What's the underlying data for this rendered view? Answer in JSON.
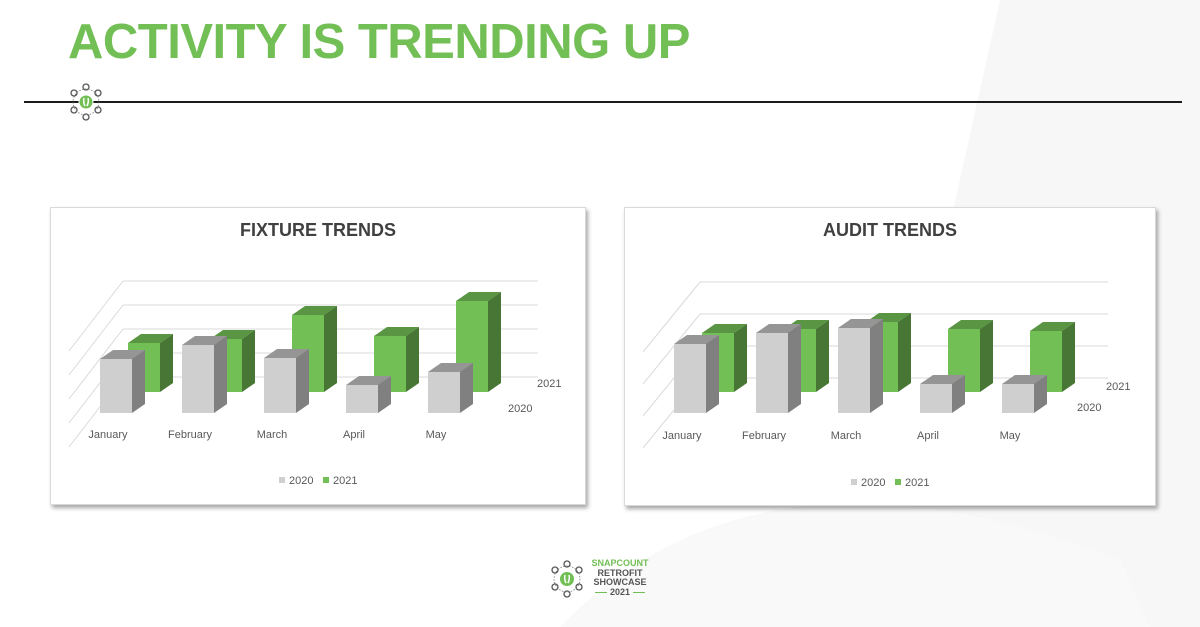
{
  "slide": {
    "title": "ACTIVITY IS TRENDING UP",
    "accent_color": "#72bf55",
    "footer": {
      "brand": "SNAPCOUNT",
      "line2": "RETROFIT",
      "line3": "SHOWCASE",
      "year": "2021"
    }
  },
  "charts": [
    {
      "title": "FIXTURE TRENDS"
    },
    {
      "title": "AUDIT TRENDS"
    }
  ],
  "chart_data": [
    {
      "type": "bar",
      "subtype": "3d-clustered-depth",
      "title": "FIXTURE TRENDS",
      "categories": [
        "January",
        "February",
        "March",
        "April",
        "May"
      ],
      "series": [
        {
          "name": "2020",
          "color": "#d0cfd0",
          "values": [
            54,
            68,
            55,
            28,
            41
          ]
        },
        {
          "name": "2021",
          "color": "#72bf55",
          "values": [
            49,
            53,
            77,
            56,
            91
          ]
        }
      ],
      "depth_axis_labels": [
        "2021",
        "2020"
      ],
      "units": "relative (no value axis shown)",
      "gridlines": 5,
      "legend": {
        "position": "bottom",
        "entries": [
          "2020",
          "2021"
        ]
      },
      "xlabel": "",
      "ylabel": ""
    },
    {
      "type": "bar",
      "subtype": "3d-clustered-depth",
      "title": "AUDIT TRENDS",
      "categories": [
        "January",
        "February",
        "March",
        "April",
        "May"
      ],
      "series": [
        {
          "name": "2020",
          "color": "#d0cfd0",
          "values": [
            69,
            80,
            85,
            29,
            29
          ]
        },
        {
          "name": "2021",
          "color": "#72bf55",
          "values": [
            59,
            63,
            70,
            63,
            61
          ]
        }
      ],
      "depth_axis_labels": [
        "2021",
        "2020"
      ],
      "units": "relative (no value axis shown)",
      "gridlines": 4,
      "legend": {
        "position": "bottom",
        "entries": [
          "2020",
          "2021"
        ]
      },
      "xlabel": "",
      "ylabel": ""
    }
  ]
}
